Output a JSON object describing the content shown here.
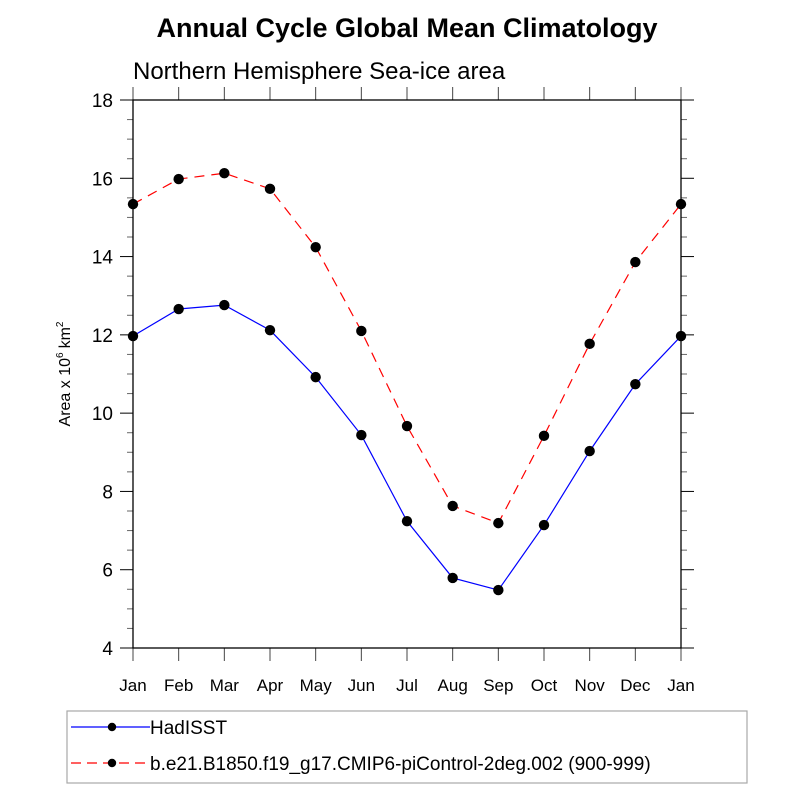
{
  "chart_data": {
    "type": "line",
    "title": "Annual Cycle Global Mean Climatology",
    "subtitle": "Northern Hemisphere Sea-ice area",
    "xlabel": "",
    "ylabel": "Area x 10",
    "ylabel_sup": "6",
    "ylabel_unit": "km",
    "ylabel_unit_sup": "2",
    "categories": [
      "Jan",
      "Feb",
      "Mar",
      "Apr",
      "May",
      "Jun",
      "Jul",
      "Aug",
      "Sep",
      "Oct",
      "Nov",
      "Dec",
      "Jan"
    ],
    "ylim": [
      4,
      18
    ],
    "yticks": [
      4,
      6,
      8,
      10,
      12,
      14,
      16,
      18
    ],
    "yminor_step": 0.5,
    "grid": false,
    "legend_position": "bottom",
    "series": [
      {
        "name": "HadISST",
        "color": "#0000ff",
        "line_style": "solid",
        "marker": "filled-circle",
        "marker_color": "#000000",
        "values": [
          11.97,
          12.66,
          12.76,
          12.12,
          10.92,
          9.44,
          7.24,
          5.79,
          5.48,
          7.14,
          9.03,
          10.74,
          11.97
        ]
      },
      {
        "name": "b.e21.B1850.f19_g17.CMIP6-piControl-2deg.002 (900-999)",
        "color": "#ff0000",
        "line_style": "dashed",
        "marker": "filled-circle",
        "marker_color": "#000000",
        "values": [
          15.34,
          15.98,
          16.13,
          15.73,
          14.24,
          12.1,
          9.67,
          7.63,
          7.19,
          9.42,
          11.77,
          13.86,
          15.34
        ]
      }
    ]
  }
}
